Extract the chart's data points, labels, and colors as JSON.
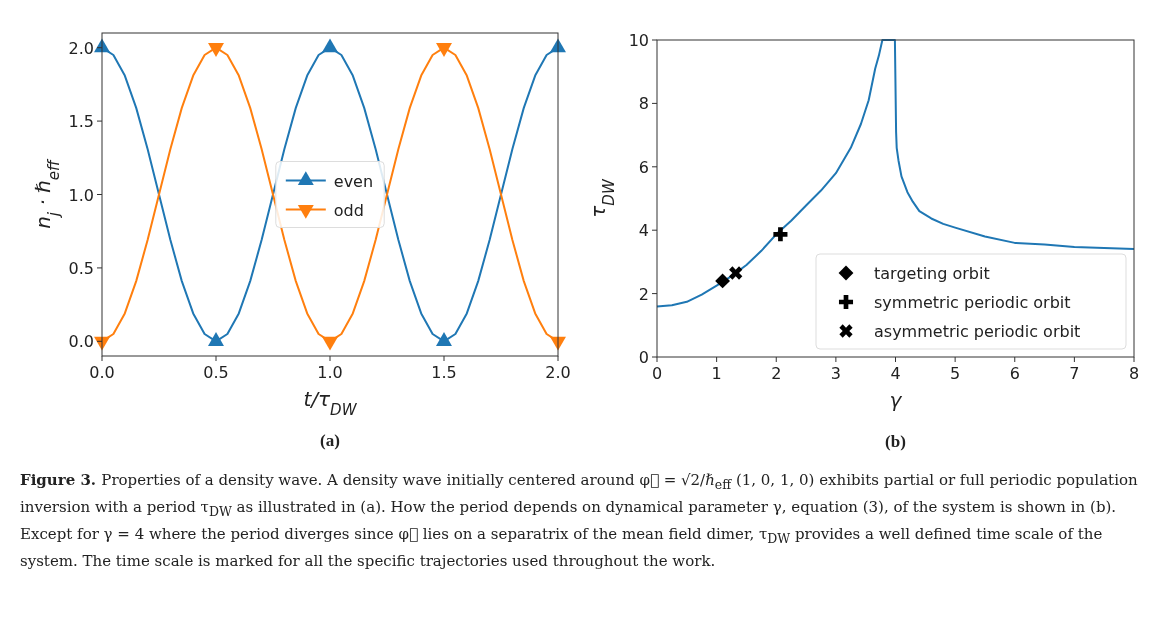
{
  "chart_data": [
    {
      "type": "line",
      "xlabel": "t/τ$_{DW}$",
      "ylabel": "n$_{j}$ · ℏ$_{eff}$",
      "x": [
        0,
        0.05,
        0.1,
        0.15,
        0.2,
        0.25,
        0.3,
        0.35,
        0.4,
        0.45,
        0.5,
        0.55,
        0.6,
        0.65,
        0.7,
        0.75,
        0.8,
        0.85,
        0.9,
        0.95,
        1,
        1.05,
        1.1,
        1.15,
        1.2,
        1.25,
        1.3,
        1.35,
        1.4,
        1.45,
        1.5,
        1.55,
        1.6,
        1.65,
        1.7,
        1.75,
        1.8,
        1.85,
        1.9,
        1.95,
        2
      ],
      "series": [
        {
          "color": "#1f77b4",
          "values": [
            2,
            1.95,
            1.81,
            1.59,
            1.31,
            1,
            0.69,
            0.41,
            0.19,
            0.05,
            0,
            0.05,
            0.19,
            0.41,
            0.69,
            1,
            1.31,
            1.59,
            1.81,
            1.95,
            2,
            1.95,
            1.81,
            1.59,
            1.31,
            1,
            0.69,
            0.41,
            0.19,
            0.05,
            0,
            0.05,
            0.19,
            0.41,
            0.69,
            1,
            1.31,
            1.59,
            1.81,
            1.95,
            2
          ]
        },
        {
          "color": "#ff7f0e",
          "values": [
            0,
            0.05,
            0.19,
            0.41,
            0.69,
            1,
            1.31,
            1.59,
            1.81,
            1.95,
            2,
            1.95,
            1.81,
            1.59,
            1.31,
            1,
            0.69,
            0.41,
            0.19,
            0.05,
            0,
            0.05,
            0.19,
            0.41,
            0.69,
            1,
            1.31,
            1.59,
            1.81,
            1.95,
            2,
            1.95,
            1.81,
            1.59,
            1.31,
            1,
            0.69,
            0.41,
            0.19,
            0.05,
            0
          ]
        },
        {
          "type": "scatter",
          "name": "even",
          "color": "#1f77b4",
          "marker": "triangle",
          "x": [
            0,
            0.5,
            1,
            1.5,
            2
          ],
          "values": [
            2,
            0,
            2,
            0,
            2
          ]
        },
        {
          "type": "scatter",
          "name": "odd",
          "color": "#ff7f0e",
          "marker": "triangle-down",
          "x": [
            0,
            0.5,
            1,
            1.5,
            2
          ],
          "values": [
            0,
            2,
            0,
            2,
            0
          ]
        }
      ],
      "xlim": [
        0,
        2
      ],
      "ylim": [
        -0.1,
        2.1
      ],
      "xticks": [
        {
          "value": 0,
          "label": "0.0"
        },
        {
          "value": 0.5,
          "label": "0.5"
        },
        {
          "value": 1,
          "label": "1.0"
        },
        {
          "value": 1.5,
          "label": "1.5"
        },
        {
          "value": 2,
          "label": "2.0"
        }
      ],
      "yticks": [
        {
          "value": 0,
          "label": "0.0"
        },
        {
          "value": 0.5,
          "label": "0.5"
        },
        {
          "value": 1,
          "label": "1.0"
        },
        {
          "value": 1.5,
          "label": "1.5"
        },
        {
          "value": 2,
          "label": "2.0"
        }
      ],
      "legend": "center",
      "annotations": [
        "(a)",
        "Figure 3.",
        "Properties of a density wave. A density wave initially centered around φ⃗ = √2/ℏ$_{eff}$ (1, 0, 1, 0) exhibits partial or full periodic population inversion with a period τ$_{DW}$ as illustrated in (a). How the period depends on dynamical parameter γ, equation (3), of the system is shown in (b). Except for γ = 4 where the period diverges since φ⃗ lies on a separatrix of the mean field dimer, τ$_{DW}$ provides a well defined time scale of the system. The time scale is marked for all the specific trajectories used throughout the work."
      ]
    },
    {
      "type": "line",
      "xlabel": "γ",
      "ylabel": "τ$_{DW}$",
      "series": [
        {
          "color": "#1f77b4",
          "x": [
            0,
            0.25,
            0.5,
            0.75,
            1,
            1.25,
            1.5,
            1.75,
            2,
            2.25,
            2.5,
            2.75,
            3,
            3.25,
            3.42,
            3.55,
            3.66,
            3.72,
            3.78,
            3.99,
            4.01,
            4.02,
            4.05,
            4.1,
            4.2,
            4.29,
            4.4,
            4.6,
            4.8,
            5,
            5.5,
            6,
            6.5,
            7,
            7.5,
            8
          ],
          "values": [
            1.59,
            1.63,
            1.74,
            1.97,
            2.25,
            2.55,
            2.9,
            3.35,
            3.87,
            4.3,
            4.78,
            5.25,
            5.8,
            6.6,
            7.35,
            8.1,
            9.1,
            9.5,
            10,
            10,
            7.1,
            6.6,
            6.2,
            5.7,
            5.2,
            4.9,
            4.6,
            4.37,
            4.2,
            4.08,
            3.8,
            3.6,
            3.55,
            3.47,
            3.44,
            3.41
          ]
        },
        {
          "type": "scatter",
          "name": "targeting orbit",
          "color": "#000000",
          "marker": "diamond",
          "x": [
            1.1
          ],
          "values": [
            2.4
          ]
        },
        {
          "type": "scatter",
          "name": "symmetric periodic orbit",
          "color": "#000000",
          "marker": "plus",
          "x": [
            2.07
          ],
          "values": [
            3.87
          ]
        },
        {
          "type": "scatter",
          "name": "asymmetric periodic orbit",
          "color": "#000000",
          "marker": "cross",
          "x": [
            1.32
          ],
          "values": [
            2.65
          ]
        }
      ],
      "xlim": [
        0,
        8
      ],
      "ylim": [
        0,
        10
      ],
      "xticks": [
        0,
        1,
        2,
        3,
        4,
        5,
        6,
        7,
        8
      ],
      "yticks": [
        0,
        2,
        4,
        6,
        8,
        10
      ],
      "legend": "lower right",
      "annotations": [
        "(b)"
      ]
    }
  ]
}
